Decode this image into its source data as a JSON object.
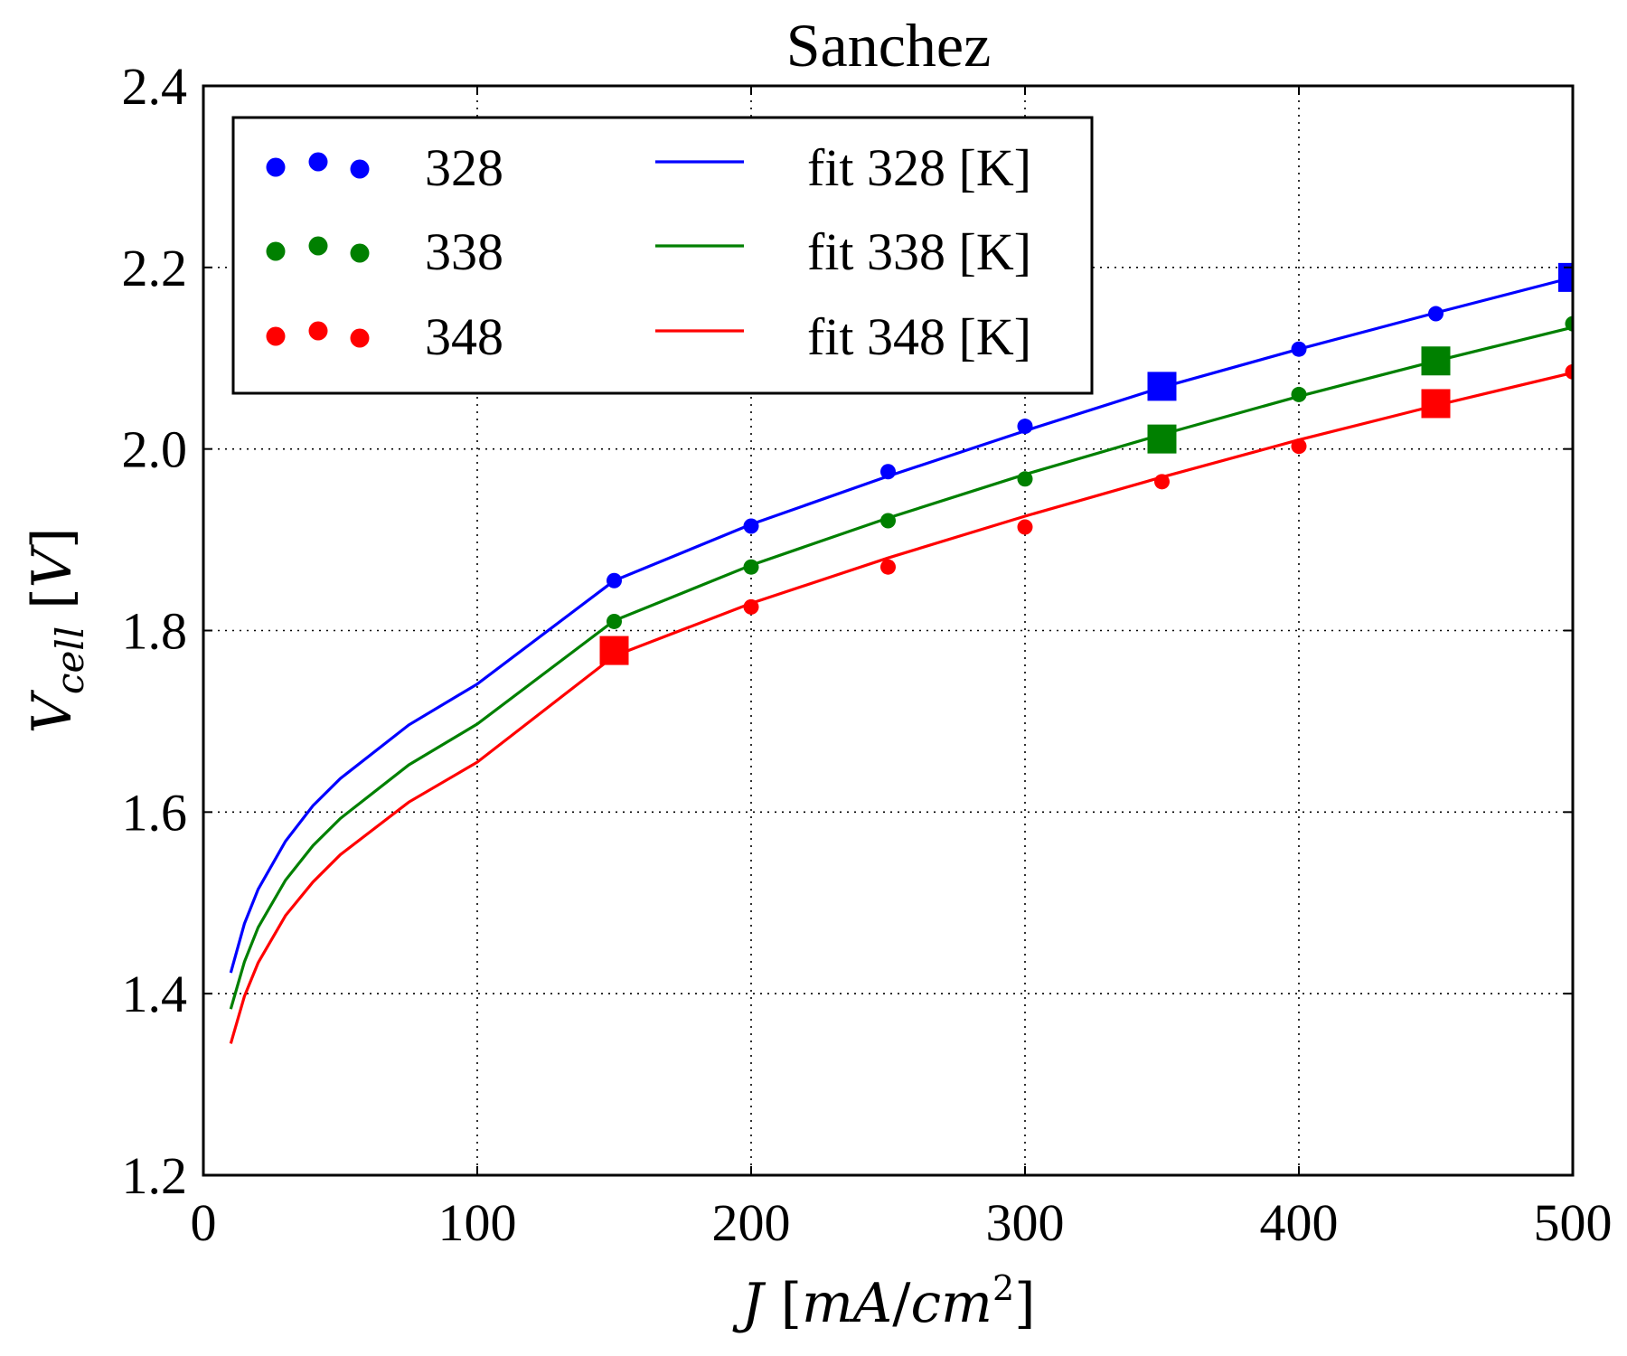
{
  "chart_data": {
    "type": "line",
    "title": "Sanchez",
    "xlabel": "J [mA/cm²]",
    "ylabel": "V_cell [V]",
    "xlim": [
      0,
      500
    ],
    "ylim": [
      1.2,
      2.4
    ],
    "xticks": [
      "0",
      "100",
      "200",
      "300",
      "400",
      "500"
    ],
    "yticks": [
      "1.2",
      "1.4",
      "1.6",
      "1.8",
      "2.0",
      "2.2",
      "2.4"
    ],
    "grid": true,
    "legend_position": "top-left",
    "x": [
      150,
      200,
      250,
      300,
      350,
      400,
      450,
      500
    ],
    "series": [
      {
        "name": "328",
        "kind": "points",
        "color": "#0000ff",
        "values": [
          1.855,
          1.915,
          1.975,
          2.025,
          2.069,
          2.11,
          2.149,
          2.189
        ],
        "highlighted_x": [
          350,
          500
        ]
      },
      {
        "name": "338",
        "kind": "points",
        "color": "#008000",
        "values": [
          1.81,
          1.87,
          1.921,
          1.967,
          2.011,
          2.06,
          2.097,
          2.138
        ],
        "highlighted_x": [
          350,
          450
        ]
      },
      {
        "name": "348",
        "kind": "points",
        "color": "#ff0000",
        "values": [
          1.778,
          1.826,
          1.87,
          1.914,
          1.964,
          2.003,
          2.05,
          2.085
        ],
        "highlighted_x": [
          150,
          450
        ]
      },
      {
        "name": "fit 328 [K]",
        "kind": "line",
        "color": "#0000ff",
        "x": [
          10,
          15,
          20,
          30,
          40,
          50,
          75,
          100,
          150,
          200,
          250,
          300,
          350,
          400,
          450,
          500
        ],
        "values": [
          1.423,
          1.477,
          1.515,
          1.568,
          1.607,
          1.637,
          1.696,
          1.741,
          1.855,
          1.917,
          1.97,
          2.02,
          2.068,
          2.11,
          2.15,
          2.189
        ]
      },
      {
        "name": "fit 338 [K]",
        "kind": "line",
        "color": "#008000",
        "x": [
          10,
          15,
          20,
          30,
          40,
          50,
          75,
          100,
          150,
          200,
          250,
          300,
          350,
          400,
          450,
          500
        ],
        "values": [
          1.383,
          1.435,
          1.473,
          1.525,
          1.563,
          1.593,
          1.652,
          1.697,
          1.811,
          1.872,
          1.924,
          1.972,
          2.016,
          2.058,
          2.097,
          2.134
        ]
      },
      {
        "name": "fit 348 [K]",
        "kind": "line",
        "color": "#ff0000",
        "x": [
          10,
          15,
          20,
          30,
          40,
          50,
          75,
          100,
          150,
          200,
          250,
          300,
          350,
          400,
          450,
          500
        ],
        "values": [
          1.345,
          1.397,
          1.434,
          1.486,
          1.523,
          1.553,
          1.611,
          1.655,
          1.772,
          1.83,
          1.88,
          1.926,
          1.969,
          2.01,
          2.048,
          2.084
        ]
      }
    ]
  }
}
